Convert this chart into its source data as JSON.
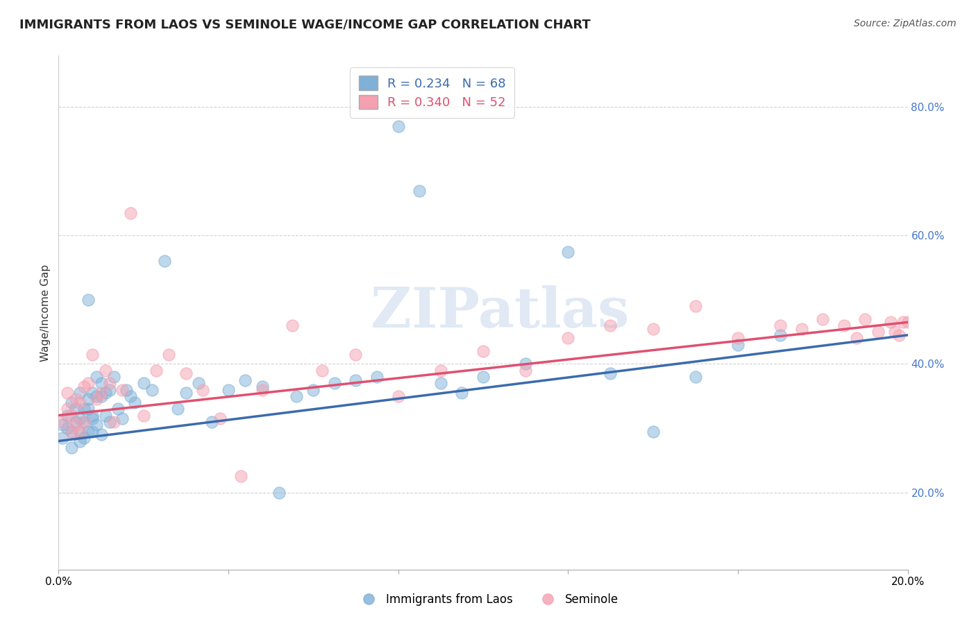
{
  "title": "IMMIGRANTS FROM LAOS VS SEMINOLE WAGE/INCOME GAP CORRELATION CHART",
  "source": "Source: ZipAtlas.com",
  "ylabel": "Wage/Income Gap",
  "legend_blue_r": "R = 0.234",
  "legend_blue_n": "N = 68",
  "legend_pink_r": "R = 0.340",
  "legend_pink_n": "N = 52",
  "legend_label_blue": "Immigrants from Laos",
  "legend_label_pink": "Seminole",
  "blue_color": "#7EB0D8",
  "pink_color": "#F4A0B0",
  "blue_line_color": "#3B6BAD",
  "pink_line_color": "#E05070",
  "watermark": "ZIPatlas",
  "xlim": [
    0.0,
    0.2
  ],
  "ylim": [
    0.08,
    0.88
  ],
  "yticks": [
    0.2,
    0.4,
    0.6,
    0.8
  ],
  "ytick_labels": [
    "20.0%",
    "40.0%",
    "60.0%",
    "80.0%"
  ],
  "xtick_positions": [
    0.0,
    0.04,
    0.08,
    0.12,
    0.16,
    0.2
  ],
  "blue_x": [
    0.001,
    0.001,
    0.002,
    0.002,
    0.003,
    0.003,
    0.003,
    0.004,
    0.004,
    0.005,
    0.005,
    0.005,
    0.005,
    0.006,
    0.006,
    0.006,
    0.007,
    0.007,
    0.007,
    0.007,
    0.008,
    0.008,
    0.008,
    0.008,
    0.009,
    0.009,
    0.009,
    0.01,
    0.01,
    0.01,
    0.011,
    0.011,
    0.012,
    0.012,
    0.013,
    0.014,
    0.015,
    0.016,
    0.017,
    0.018,
    0.02,
    0.022,
    0.025,
    0.028,
    0.03,
    0.033,
    0.036,
    0.04,
    0.044,
    0.048,
    0.052,
    0.056,
    0.06,
    0.065,
    0.07,
    0.075,
    0.08,
    0.085,
    0.09,
    0.095,
    0.1,
    0.11,
    0.12,
    0.13,
    0.14,
    0.15,
    0.16,
    0.17
  ],
  "blue_y": [
    0.305,
    0.285,
    0.32,
    0.3,
    0.34,
    0.295,
    0.27,
    0.31,
    0.33,
    0.28,
    0.355,
    0.315,
    0.295,
    0.33,
    0.31,
    0.285,
    0.345,
    0.33,
    0.5,
    0.295,
    0.32,
    0.355,
    0.295,
    0.315,
    0.35,
    0.305,
    0.38,
    0.37,
    0.35,
    0.29,
    0.355,
    0.32,
    0.36,
    0.31,
    0.38,
    0.33,
    0.315,
    0.36,
    0.35,
    0.34,
    0.37,
    0.36,
    0.56,
    0.33,
    0.355,
    0.37,
    0.31,
    0.36,
    0.375,
    0.365,
    0.2,
    0.35,
    0.36,
    0.37,
    0.375,
    0.38,
    0.77,
    0.67,
    0.37,
    0.355,
    0.38,
    0.4,
    0.575,
    0.385,
    0.295,
    0.38,
    0.43,
    0.445
  ],
  "pink_x": [
    0.001,
    0.002,
    0.002,
    0.003,
    0.003,
    0.004,
    0.004,
    0.005,
    0.005,
    0.006,
    0.006,
    0.007,
    0.008,
    0.009,
    0.01,
    0.011,
    0.012,
    0.013,
    0.015,
    0.017,
    0.02,
    0.023,
    0.026,
    0.03,
    0.034,
    0.038,
    0.043,
    0.048,
    0.055,
    0.062,
    0.07,
    0.08,
    0.09,
    0.1,
    0.11,
    0.12,
    0.13,
    0.14,
    0.15,
    0.16,
    0.17,
    0.175,
    0.18,
    0.185,
    0.188,
    0.19,
    0.193,
    0.196,
    0.197,
    0.198,
    0.199,
    0.2
  ],
  "pink_y": [
    0.31,
    0.33,
    0.355,
    0.295,
    0.32,
    0.345,
    0.305,
    0.34,
    0.295,
    0.365,
    0.31,
    0.37,
    0.415,
    0.345,
    0.355,
    0.39,
    0.37,
    0.31,
    0.36,
    0.635,
    0.32,
    0.39,
    0.415,
    0.385,
    0.36,
    0.315,
    0.225,
    0.36,
    0.46,
    0.39,
    0.415,
    0.35,
    0.39,
    0.42,
    0.39,
    0.44,
    0.46,
    0.455,
    0.49,
    0.44,
    0.46,
    0.455,
    0.47,
    0.46,
    0.44,
    0.47,
    0.45,
    0.465,
    0.45,
    0.445,
    0.465,
    0.465
  ],
  "title_fontsize": 13,
  "source_fontsize": 10,
  "axis_label_fontsize": 11
}
